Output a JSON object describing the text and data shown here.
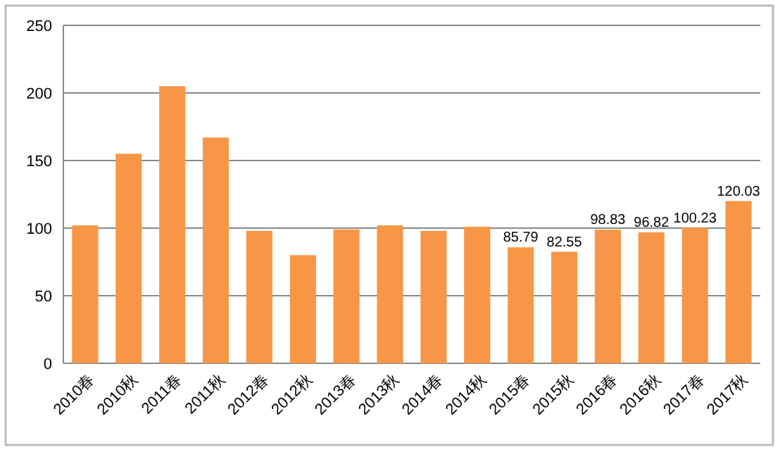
{
  "chart_data": {
    "type": "bar",
    "categories": [
      "2010春",
      "2010秋",
      "2011春",
      "2011秋",
      "2012春",
      "2012秋",
      "2013春",
      "2013秋",
      "2014春",
      "2014秋",
      "2015春",
      "2015秋",
      "2016春",
      "2016秋",
      "2017春",
      "2017秋"
    ],
    "values": [
      102,
      155,
      205,
      167,
      98,
      80,
      99,
      102,
      98,
      101,
      85.79,
      82.55,
      98.83,
      96.82,
      100.23,
      120.03
    ],
    "value_labels": [
      null,
      null,
      null,
      null,
      null,
      null,
      null,
      null,
      null,
      null,
      "85.79",
      "82.55",
      "98.83",
      "96.82",
      "100.23",
      "120.03"
    ],
    "color": "#f79646",
    "ylim": [
      0,
      250
    ],
    "yticks": [
      0,
      50,
      100,
      150,
      200,
      250
    ],
    "grid": "y"
  }
}
